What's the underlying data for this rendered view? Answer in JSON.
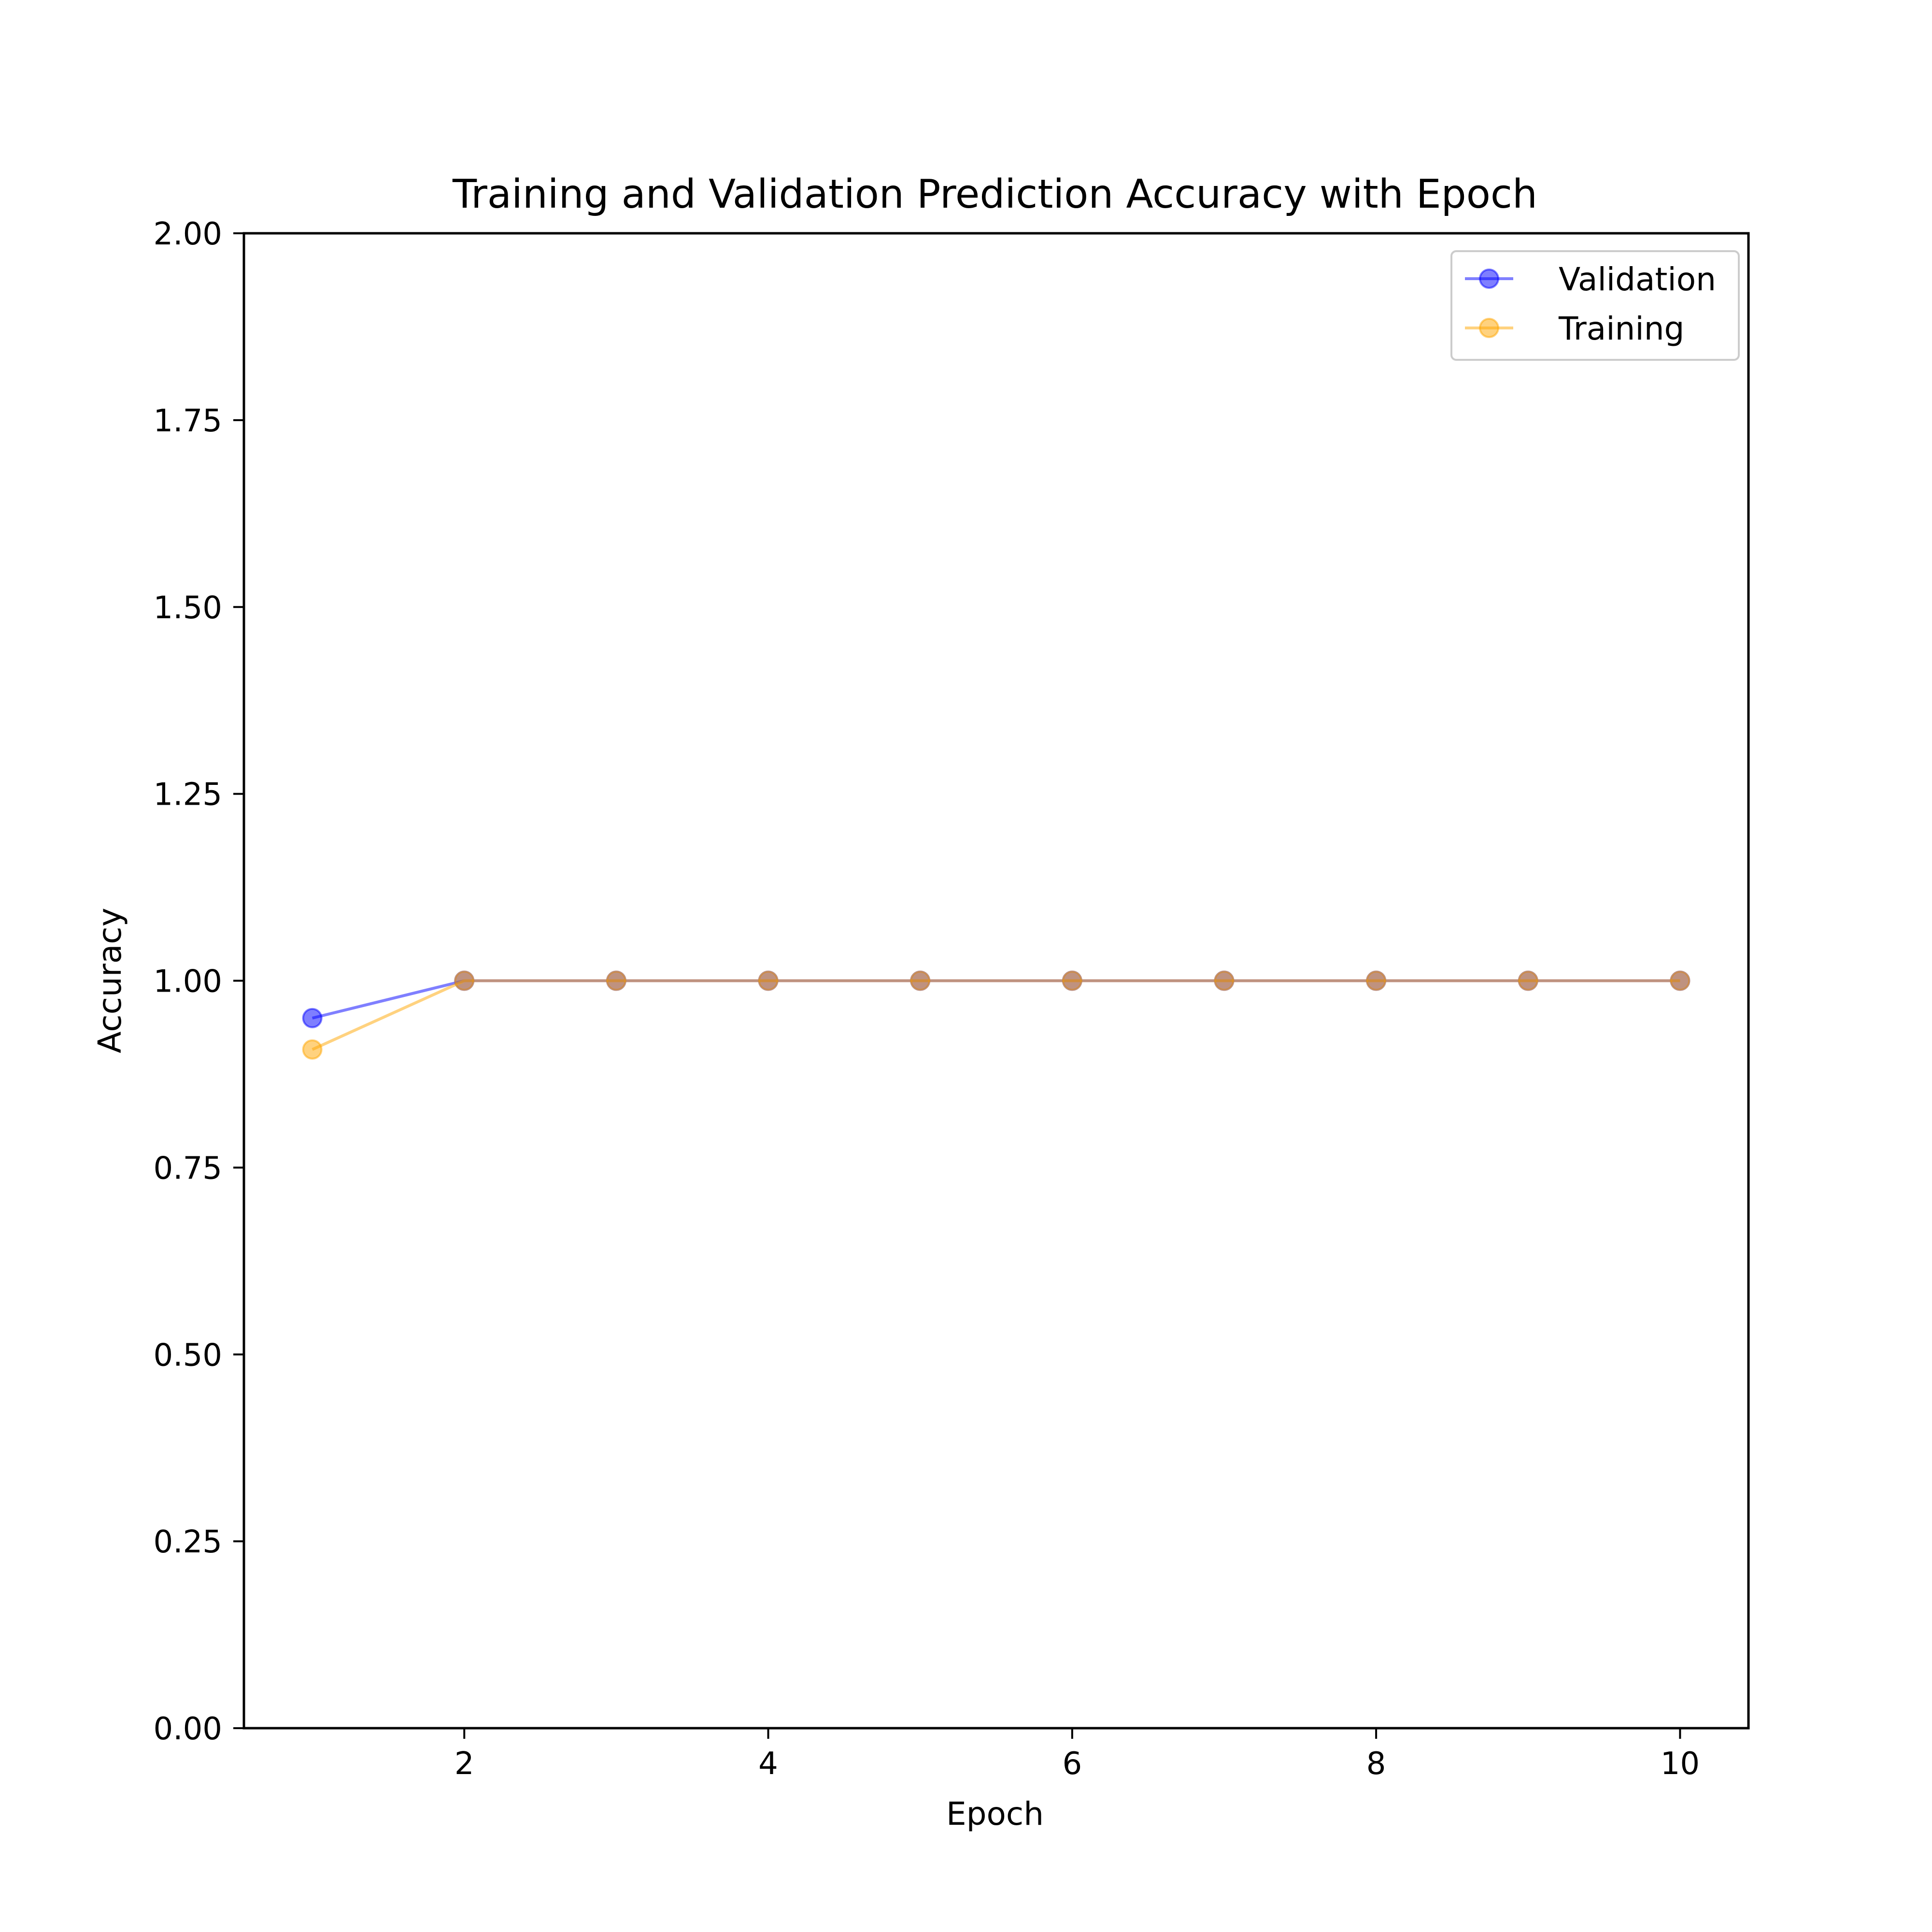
{
  "chart_data": {
    "type": "line",
    "title": "Training and Validation Prediction Accuracy with Epoch",
    "xlabel": "Epoch",
    "ylabel": "Accuracy",
    "xlim": [
      0.55,
      10.45
    ],
    "ylim": [
      0,
      2
    ],
    "x_ticks": [
      2,
      4,
      6,
      8,
      10
    ],
    "x_tick_labels": [
      "2",
      "4",
      "6",
      "8",
      "10"
    ],
    "y_ticks": [
      0,
      0.25,
      0.5,
      0.75,
      1.0,
      1.25,
      1.5,
      1.75,
      2.0
    ],
    "y_tick_labels": [
      "0.00",
      "0.25",
      "0.50",
      "0.75",
      "1.00",
      "1.25",
      "1.50",
      "1.75",
      "2.00"
    ],
    "grid": false,
    "legend_position": "top-right",
    "x": [
      1,
      2,
      3,
      4,
      5,
      6,
      7,
      8,
      9,
      10
    ],
    "series": [
      {
        "name": "Validation",
        "color": "#0000ff",
        "marker": "circle",
        "values": [
          0.95,
          1,
          1,
          1,
          1,
          1,
          1,
          1,
          1,
          1
        ]
      },
      {
        "name": "Training",
        "color": "#ffa500",
        "marker": "circle",
        "values": [
          0.908,
          1,
          1,
          1,
          1,
          1,
          1,
          1,
          1,
          1
        ]
      }
    ]
  }
}
